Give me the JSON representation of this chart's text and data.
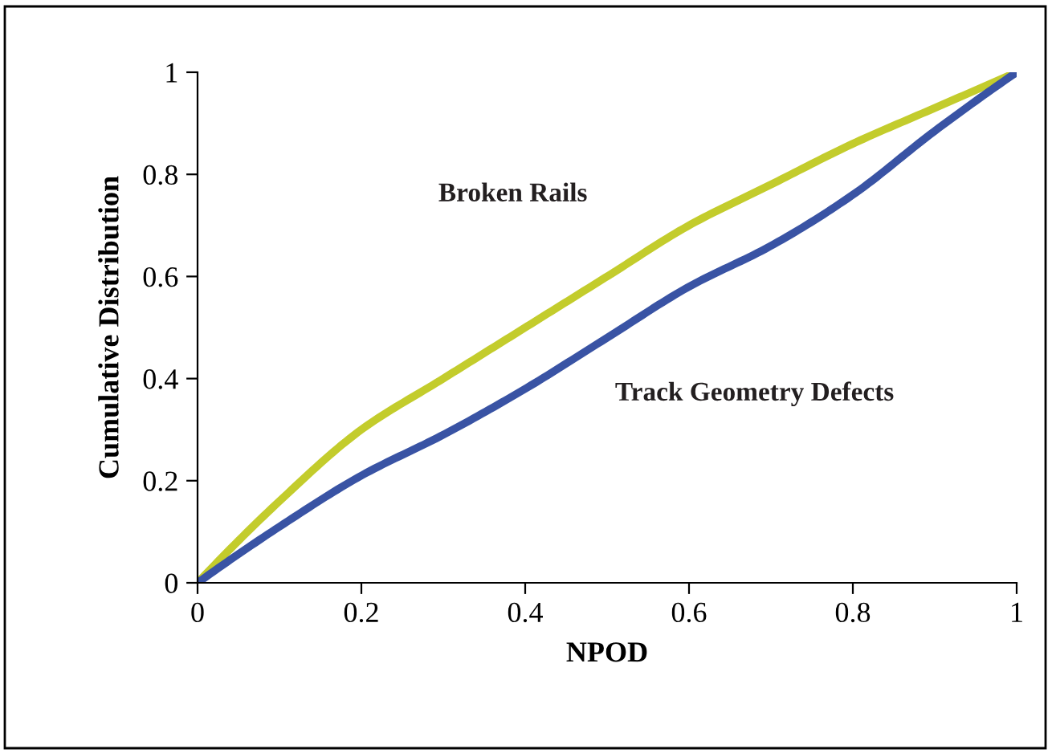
{
  "chart_data": {
    "type": "line",
    "xlabel": "NPOD",
    "ylabel": "Cumulative Distribution",
    "x": [
      0,
      0.1,
      0.2,
      0.3,
      0.4,
      0.5,
      0.6,
      0.7,
      0.8,
      0.9,
      1
    ],
    "series": [
      {
        "name": "Broken Rails",
        "color": "#c3cc2c",
        "values": [
          0,
          0.16,
          0.3,
          0.4,
          0.5,
          0.6,
          0.7,
          0.78,
          0.86,
          0.93,
          1
        ]
      },
      {
        "name": "Track Geometry Defects",
        "color": "#3953a4",
        "values": [
          0,
          0.11,
          0.21,
          0.29,
          0.38,
          0.48,
          0.58,
          0.66,
          0.76,
          0.885,
          1
        ]
      }
    ],
    "xlim": [
      0,
      1
    ],
    "ylim": [
      0,
      1
    ],
    "xticks": [
      0,
      0.2,
      0.4,
      0.6,
      0.8,
      1
    ],
    "yticks": [
      0,
      0.2,
      0.4,
      0.6,
      0.8,
      1
    ],
    "grid": false,
    "legend": false,
    "marker": "none",
    "line_style": "solid"
  }
}
